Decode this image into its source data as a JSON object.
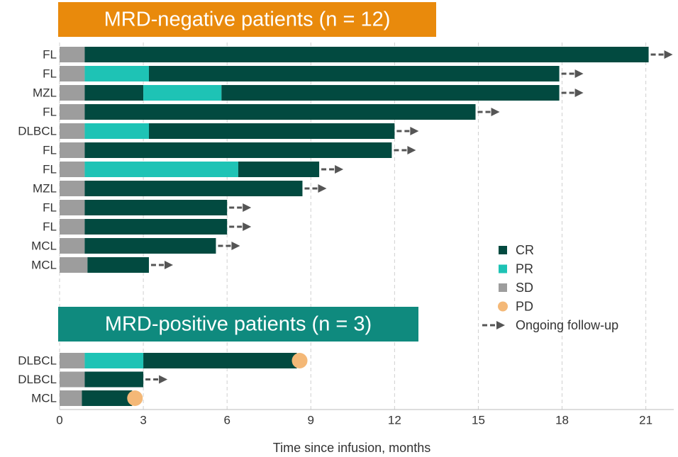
{
  "chart_data": {
    "type": "swimmer",
    "xlabel": "Time since infusion, months",
    "xlim": [
      0,
      22
    ],
    "xticks": [
      0,
      3,
      6,
      9,
      12,
      15,
      18,
      21
    ],
    "grid": true,
    "colors": {
      "CR": "#024a40",
      "PR": "#1ec3b5",
      "SD": "#9d9d9d",
      "PD": "#f4b877",
      "ongoing": "#555555"
    },
    "legend": [
      {
        "key": "CR",
        "label": "CR"
      },
      {
        "key": "PR",
        "label": "PR"
      },
      {
        "key": "SD",
        "label": "SD"
      },
      {
        "key": "PD",
        "label": "PD"
      },
      {
        "key": "ongoing",
        "label": "Ongoing follow-up"
      }
    ],
    "groups": [
      {
        "title": "MRD-negative patients (n = 12)",
        "color": "#e98a0c",
        "patients": [
          {
            "label": "FL",
            "segments": [
              {
                "response": "SD",
                "months": 0.9
              },
              {
                "response": "CR",
                "months": 20.2
              }
            ],
            "ongoing": true
          },
          {
            "label": "FL",
            "segments": [
              {
                "response": "SD",
                "months": 0.9
              },
              {
                "response": "PR",
                "months": 2.3
              },
              {
                "response": "CR",
                "months": 14.7
              }
            ],
            "ongoing": true
          },
          {
            "label": "MZL",
            "segments": [
              {
                "response": "SD",
                "months": 0.9
              },
              {
                "response": "CR",
                "months": 2.1
              },
              {
                "response": "PR",
                "months": 2.8
              },
              {
                "response": "CR",
                "months": 12.1
              }
            ],
            "ongoing": true
          },
          {
            "label": "FL",
            "segments": [
              {
                "response": "SD",
                "months": 0.9
              },
              {
                "response": "CR",
                "months": 14.0
              }
            ],
            "ongoing": true
          },
          {
            "label": "DLBCL",
            "segments": [
              {
                "response": "SD",
                "months": 0.9
              },
              {
                "response": "PR",
                "months": 2.3
              },
              {
                "response": "CR",
                "months": 8.8
              }
            ],
            "ongoing": true
          },
          {
            "label": "FL",
            "segments": [
              {
                "response": "SD",
                "months": 0.9
              },
              {
                "response": "CR",
                "months": 11.0
              }
            ],
            "ongoing": true
          },
          {
            "label": "FL",
            "segments": [
              {
                "response": "SD",
                "months": 0.9
              },
              {
                "response": "PR",
                "months": 5.5
              },
              {
                "response": "CR",
                "months": 2.9
              }
            ],
            "ongoing": true
          },
          {
            "label": "MZL",
            "segments": [
              {
                "response": "SD",
                "months": 0.9
              },
              {
                "response": "CR",
                "months": 7.8
              }
            ],
            "ongoing": true
          },
          {
            "label": "FL",
            "segments": [
              {
                "response": "SD",
                "months": 0.9
              },
              {
                "response": "CR",
                "months": 5.1
              }
            ],
            "ongoing": true
          },
          {
            "label": "FL",
            "segments": [
              {
                "response": "SD",
                "months": 0.9
              },
              {
                "response": "CR",
                "months": 5.1
              }
            ],
            "ongoing": true
          },
          {
            "label": "MCL",
            "segments": [
              {
                "response": "SD",
                "months": 0.9
              },
              {
                "response": "CR",
                "months": 4.7
              }
            ],
            "ongoing": true
          },
          {
            "label": "MCL",
            "segments": [
              {
                "response": "SD",
                "months": 1.0
              },
              {
                "response": "CR",
                "months": 2.2
              }
            ],
            "ongoing": true
          }
        ]
      },
      {
        "title": "MRD-positive patients (n = 3)",
        "color": "#0f8a7e",
        "patients": [
          {
            "label": "DLBCL",
            "segments": [
              {
                "response": "SD",
                "months": 0.9
              },
              {
                "response": "PR",
                "months": 2.1
              },
              {
                "response": "CR",
                "months": 5.5
              }
            ],
            "ongoing": false,
            "pd": 8.6
          },
          {
            "label": "DLBCL",
            "segments": [
              {
                "response": "SD",
                "months": 0.9
              },
              {
                "response": "CR",
                "months": 2.1
              }
            ],
            "ongoing": true
          },
          {
            "label": "MCL",
            "segments": [
              {
                "response": "SD",
                "months": 0.8
              },
              {
                "response": "CR",
                "months": 1.8
              }
            ],
            "ongoing": false,
            "pd": 2.7
          }
        ]
      }
    ]
  }
}
